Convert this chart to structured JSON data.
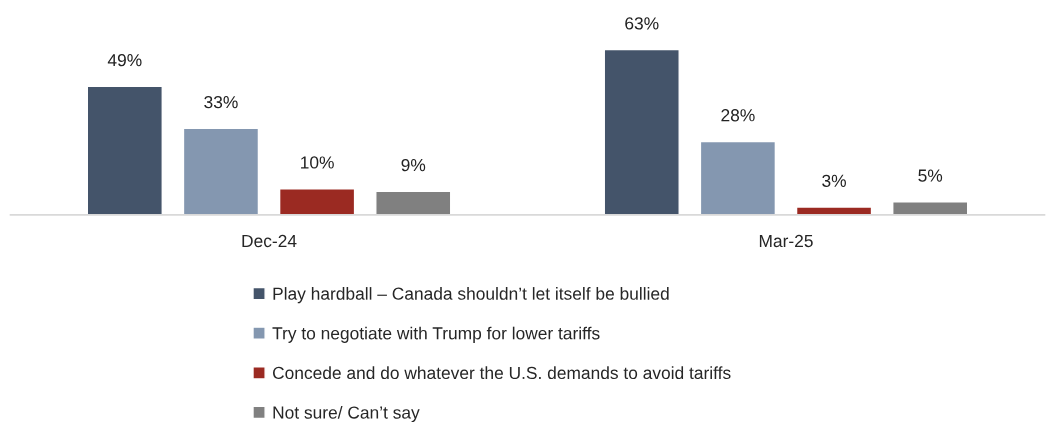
{
  "chart_data": {
    "type": "bar",
    "categories": [
      "Dec-24",
      "Mar-25"
    ],
    "series": [
      {
        "name": "Play hardball – Canada shouldn’t let itself be bullied",
        "color": "#44546a",
        "values": [
          49,
          63
        ],
        "value_labels": [
          "49%",
          "63%"
        ]
      },
      {
        "name": "Try to negotiate with Trump for lower tariffs",
        "color": "#8497b0",
        "values": [
          33,
          28
        ],
        "value_labels": [
          "33%",
          "28%"
        ]
      },
      {
        "name": "Concede and do whatever the U.S. demands to avoid tariffs",
        "color": "#9b2a22",
        "values": [
          10,
          3
        ],
        "value_labels": [
          "10%",
          "3%"
        ]
      },
      {
        "name": "Not sure/ Can’t say",
        "color": "#808080",
        "values": [
          9,
          5
        ],
        "value_labels": [
          "9%",
          "5%"
        ]
      }
    ],
    "legend": "bottom",
    "grid": false
  }
}
